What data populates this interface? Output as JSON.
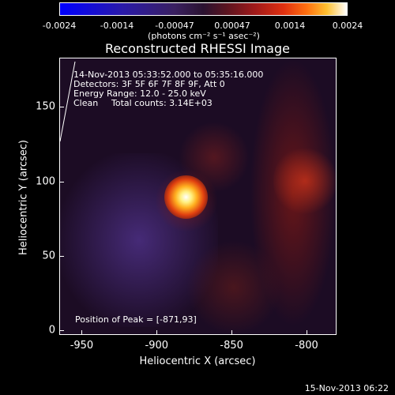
{
  "colorbar": {
    "ticks": [
      "-0.0024",
      "-0.0014",
      "-0.00047",
      "0.00047",
      "0.0014",
      "0.0024"
    ],
    "unit_label": "(photons cm⁻² s⁻¹ asec⁻²)"
  },
  "chart_data": {
    "type": "heatmap",
    "title": "Reconstructed RHESSI Image",
    "xlabel": "Heliocentric X (arcsec)",
    "ylabel": "Heliocentric Y (arcsec)",
    "x_ticks": [
      "-950",
      "-900",
      "-850",
      "-800"
    ],
    "y_ticks": [
      "0",
      "50",
      "100",
      "150"
    ],
    "xlim": [
      -965,
      -780
    ],
    "ylim": [
      -3,
      183
    ],
    "color_range": [
      -0.0024,
      0.0024
    ],
    "peak": {
      "x": -871,
      "y": 93
    },
    "annotations": {
      "time_range": "14-Nov-2013 05:33:52.000 to 05:35:16.000",
      "detectors": "Detectors: 3F 5F 6F 7F 8F 9F, Att 0",
      "energy": "Energy Range: 12.0 - 25.0 keV",
      "method": "Clean",
      "counts": "Total counts: 3.14E+03",
      "peak_text": "Position of Peak = [-871,93]"
    }
  },
  "footer": {
    "datestamp": "15-Nov-2013 06:22"
  }
}
